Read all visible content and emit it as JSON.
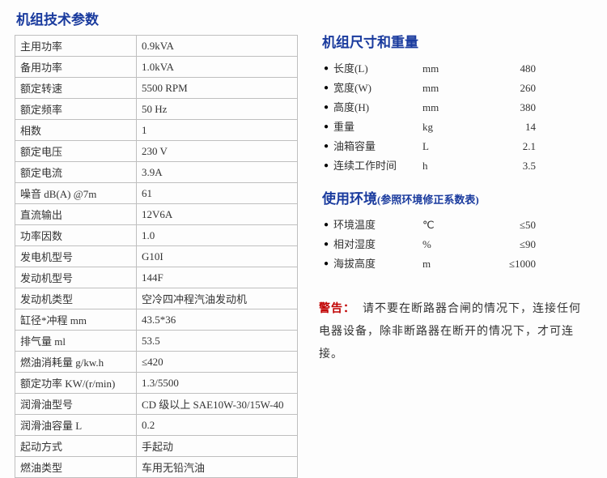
{
  "titles": {
    "tech": "机组技术参数",
    "dims": "机组尺寸和重量",
    "env": "使用环境",
    "env_sub": "(参照环境修正系数表)"
  },
  "spec_rows": [
    {
      "k": "主用功率",
      "v": "0.9kVA"
    },
    {
      "k": "备用功率",
      "v": "1.0kVA"
    },
    {
      "k": "额定转速",
      "v": "5500 RPM"
    },
    {
      "k": "额定频率",
      "v": "50 Hz"
    },
    {
      "k": "相数",
      "v": "1"
    },
    {
      "k": "额定电压",
      "v": "230 V"
    },
    {
      "k": "额定电流",
      "v": "3.9A"
    },
    {
      "k": "噪音 dB(A) @7m",
      "v": "61"
    },
    {
      "k": "直流输出",
      "v": "12V6A"
    },
    {
      "k": "功率因数",
      "v": "1.0"
    },
    {
      "k": "发电机型号",
      "v": "G10I"
    },
    {
      "k": "发动机型号",
      "v": "144F"
    },
    {
      "k": "发动机类型",
      "v": "空冷四冲程汽油发动机"
    },
    {
      "k": "缸径*冲程 mm",
      "v": "43.5*36"
    },
    {
      "k": "排气量 ml",
      "v": "53.5"
    },
    {
      "k": "燃油消耗量 g/kw.h",
      "v": "≤420"
    },
    {
      "k": "额定功率 KW/(r/min)",
      "v": "1.3/5500"
    },
    {
      "k": "润滑油型号",
      "v": "CD 级以上 SAE10W-30/15W-40"
    },
    {
      "k": "润滑油容量 L",
      "v": "0.2"
    },
    {
      "k": "起动方式",
      "v": "手起动"
    },
    {
      "k": "燃油类型",
      "v": "车用无铅汽油"
    }
  ],
  "dims": [
    {
      "label": "长度(L)",
      "unit": "mm",
      "val": "480"
    },
    {
      "label": "宽度(W)",
      "unit": "mm",
      "val": "260"
    },
    {
      "label": "高度(H)",
      "unit": "mm",
      "val": "380"
    },
    {
      "label": "重量",
      "unit": "kg",
      "val": "14"
    },
    {
      "label": "油箱容量",
      "unit": "L",
      "val": "2.1"
    },
    {
      "label": "连续工作时间",
      "unit": "h",
      "val": "3.5"
    }
  ],
  "env": [
    {
      "label": "环境温度",
      "unit": "℃",
      "val": "≤50"
    },
    {
      "label": "相对湿度",
      "unit": "%",
      "val": "≤90"
    },
    {
      "label": "海拔高度",
      "unit": "m",
      "val": "≤1000"
    }
  ],
  "warning": {
    "label": "警告：",
    "text": "请不要在断路器合闸的情况下，连接任何电器设备，除非断路器在断开的情况下，才可连接。"
  }
}
